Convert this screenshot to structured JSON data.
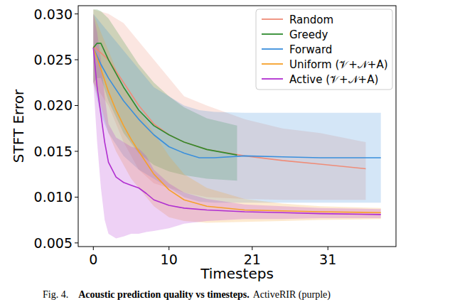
{
  "chart_data": {
    "type": "line",
    "x_label": "Timesteps",
    "y_label": "STFT Error",
    "caption": {
      "label": "Fig. 4.",
      "title": "Acoustic prediction quality vs timesteps.",
      "text": "ActiveRIR (purple)"
    },
    "xlim": [
      -2,
      40
    ],
    "ylim": [
      0.0046,
      0.0309
    ],
    "xticks": [
      0,
      10,
      21,
      31
    ],
    "yticks": [
      0.005,
      {
        "value": 0.01,
        "label": "0.010"
      },
      0.015,
      {
        "value": 0.02,
        "label": "0.020"
      },
      0.025,
      {
        "value": 0.03,
        "label": "0.030"
      }
    ],
    "legend": "upper right",
    "grid": false,
    "series": [
      {
        "name": "Random",
        "color": "#ef8c78",
        "x": [
          0,
          2,
          4,
          6,
          8,
          10,
          12,
          15,
          20,
          25,
          30,
          36
        ],
        "values": [
          0.0265,
          0.025,
          0.0225,
          0.02,
          0.018,
          0.0168,
          0.016,
          0.0152,
          0.0145,
          0.014,
          0.0136,
          0.0131
        ],
        "upper": [
          0.0305,
          0.03,
          0.029,
          0.027,
          0.025,
          0.023,
          0.021,
          0.02,
          0.0185,
          0.0175,
          0.017,
          0.016
        ],
        "lower": [
          0.0225,
          0.02,
          0.016,
          0.013,
          0.0115,
          0.011,
          0.0105,
          0.01,
          0.0098,
          0.0097,
          0.0097,
          0.0097
        ]
      },
      {
        "name": "Greedy",
        "color": "#2e8b2e",
        "x": [
          0,
          0.5,
          1,
          2,
          4,
          6,
          8,
          10,
          12,
          15,
          19
        ],
        "values": [
          0.0263,
          0.0268,
          0.0268,
          0.025,
          0.022,
          0.0195,
          0.0178,
          0.0168,
          0.016,
          0.0152,
          0.0146
        ],
        "upper": [
          0.0305,
          0.0305,
          0.0303,
          0.0295,
          0.027,
          0.0245,
          0.0225,
          0.021,
          0.0198,
          0.0186,
          0.0178
        ],
        "lower": [
          0.0225,
          0.023,
          0.023,
          0.0205,
          0.017,
          0.0148,
          0.0135,
          0.0128,
          0.0124,
          0.012,
          0.0118
        ]
      },
      {
        "name": "Forward",
        "color": "#3a8fdc",
        "x": [
          0,
          1,
          2,
          4,
          6,
          8,
          10,
          12,
          14,
          16,
          20,
          25,
          30,
          38
        ],
        "values": [
          0.0263,
          0.0245,
          0.023,
          0.0205,
          0.0185,
          0.0168,
          0.0155,
          0.0148,
          0.0143,
          0.0143,
          0.0145,
          0.0144,
          0.0143,
          0.0143
        ],
        "upper": [
          0.03,
          0.029,
          0.028,
          0.026,
          0.024,
          0.022,
          0.021,
          0.02,
          0.0195,
          0.0193,
          0.0192,
          0.0192,
          0.0192,
          0.0192
        ],
        "lower": [
          0.0225,
          0.019,
          0.017,
          0.0145,
          0.013,
          0.012,
          0.011,
          0.01,
          0.0095,
          0.0094,
          0.0094,
          0.0094,
          0.0094,
          0.0094
        ]
      },
      {
        "name": "Uniform (𝒱+𝒩+A)",
        "color": "#f5a02a",
        "x": [
          0,
          1,
          2,
          3,
          4,
          5,
          6,
          8,
          10,
          12,
          15,
          20,
          25,
          30,
          38
        ],
        "values": [
          0.0263,
          0.024,
          0.0215,
          0.0195,
          0.0178,
          0.0163,
          0.015,
          0.0125,
          0.0108,
          0.0097,
          0.009,
          0.0086,
          0.0085,
          0.0084,
          0.0083
        ],
        "upper": [
          0.03,
          0.028,
          0.026,
          0.024,
          0.022,
          0.021,
          0.0195,
          0.017,
          0.0145,
          0.0125,
          0.011,
          0.0098,
          0.0093,
          0.009,
          0.0088
        ],
        "lower": [
          0.0225,
          0.02,
          0.017,
          0.015,
          0.0135,
          0.012,
          0.011,
          0.009,
          0.0078,
          0.0074,
          0.0072,
          0.0073,
          0.0074,
          0.0075,
          0.0076
        ]
      },
      {
        "name": "Active (𝒱+𝒩+A)",
        "color": "#b02ed0",
        "x": [
          0,
          0.5,
          1,
          1.5,
          2,
          3,
          4,
          5,
          6,
          7,
          8,
          10,
          12,
          15,
          20,
          25,
          30,
          38
        ],
        "values": [
          0.0263,
          0.022,
          0.019,
          0.016,
          0.0138,
          0.0122,
          0.0116,
          0.0113,
          0.011,
          0.0104,
          0.0097,
          0.0091,
          0.0088,
          0.0086,
          0.0084,
          0.0083,
          0.0082,
          0.0081
        ],
        "upper": [
          0.03,
          0.028,
          0.025,
          0.021,
          0.018,
          0.0165,
          0.016,
          0.0155,
          0.0153,
          0.0145,
          0.013,
          0.0115,
          0.0105,
          0.0098,
          0.0092,
          0.009,
          0.0088,
          0.0087
        ],
        "lower": [
          0.0225,
          0.016,
          0.011,
          0.0075,
          0.006,
          0.0055,
          0.0057,
          0.006,
          0.006,
          0.0062,
          0.0063,
          0.0066,
          0.0071,
          0.0074,
          0.0076,
          0.0076,
          0.0077,
          0.0077
        ]
      }
    ]
  }
}
